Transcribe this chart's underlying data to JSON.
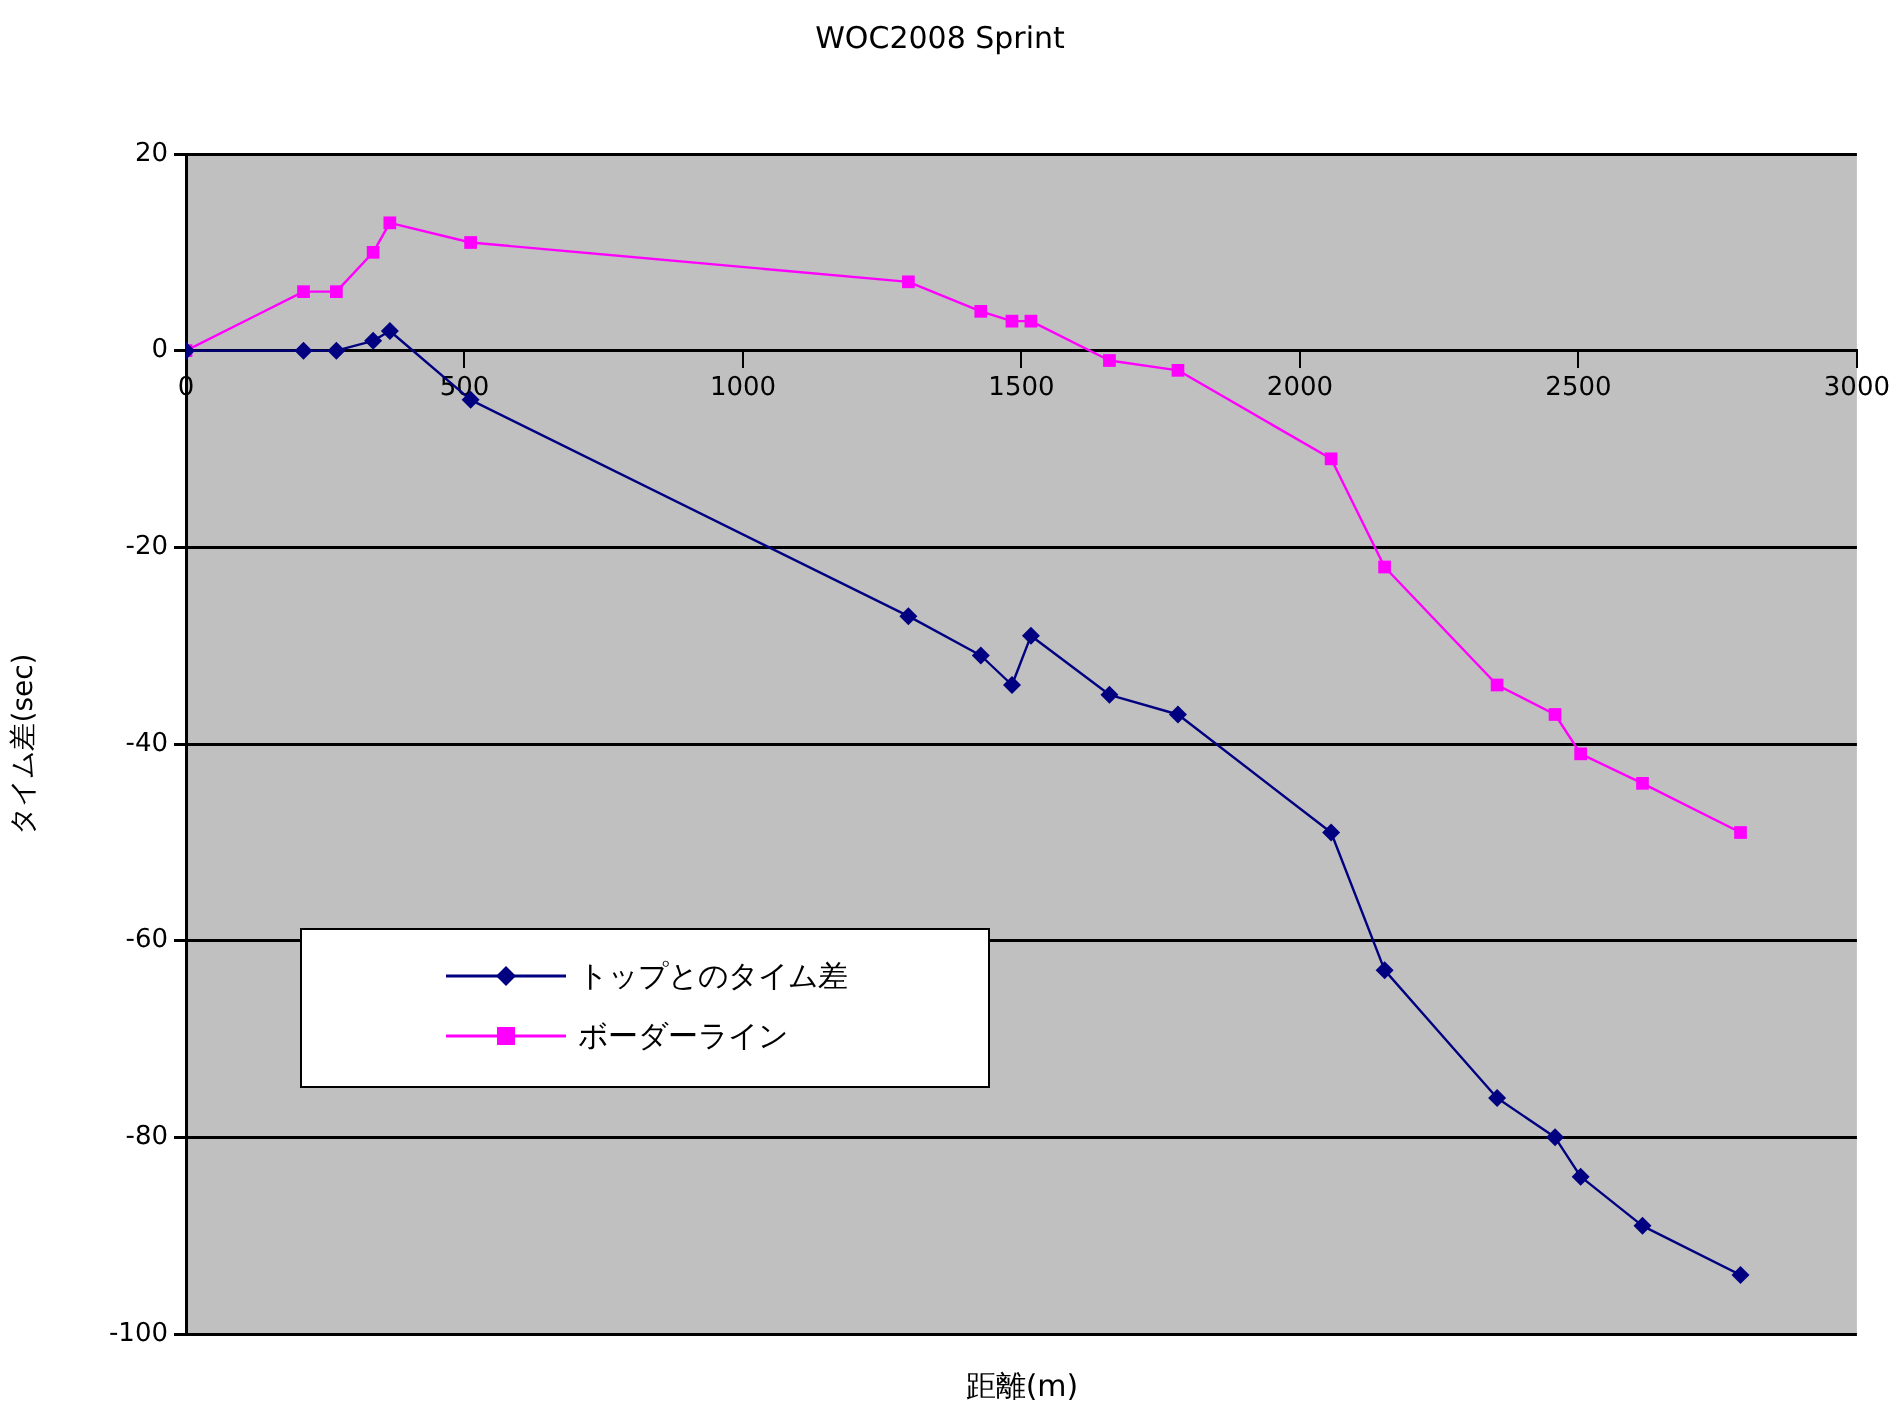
{
  "chart_data": {
    "type": "line",
    "title": "WOC2008 Sprint",
    "xlabel": "距離(m)",
    "ylabel": "タイム差(sec)",
    "x": [
      0,
      211,
      270,
      336,
      366,
      511,
      1297,
      1427,
      1483,
      1517,
      1658,
      1781,
      2056,
      2152,
      2354,
      2458,
      2504,
      2615,
      2791
    ],
    "series": [
      {
        "name": "トップとのタイム差",
        "color": "#000080",
        "marker": "diamond",
        "values": [
          0,
          0,
          0,
          1,
          2,
          -5,
          -27,
          -31,
          -34,
          -29,
          -35,
          -37,
          -49,
          -63,
          -76,
          -80,
          -84,
          -89,
          -94
        ]
      },
      {
        "name": "ボーダーライン",
        "color": "#ff00ff",
        "marker": "square",
        "values": [
          0,
          6,
          6,
          10,
          13,
          11,
          7,
          4,
          3,
          3,
          -1,
          -2,
          -11,
          -22,
          -34,
          -37,
          -41,
          -44,
          -49
        ]
      }
    ],
    "xlim": [
      0,
      3000
    ],
    "xticks": [
      0,
      500,
      1000,
      1500,
      2000,
      2500,
      3000
    ],
    "ylim": [
      -100,
      20
    ],
    "yticks": [
      -100,
      -80,
      -60,
      -40,
      -20,
      0,
      20
    ],
    "grid": "y",
    "legend": "bottom left",
    "line_style": "solid"
  }
}
